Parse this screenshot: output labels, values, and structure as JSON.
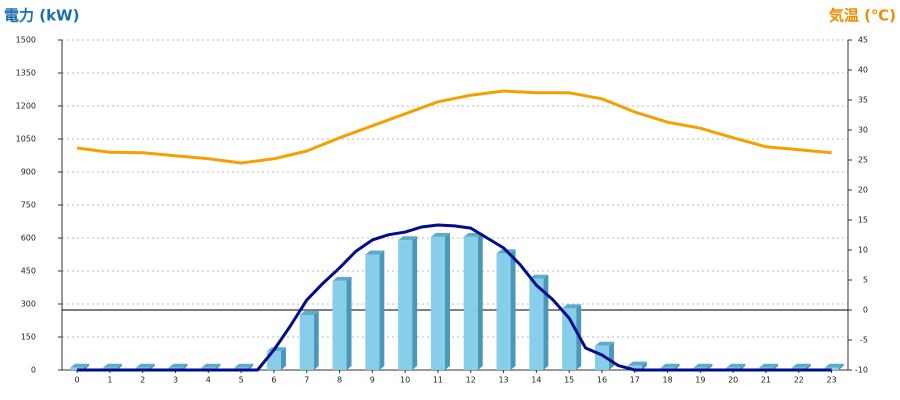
{
  "chart_data": {
    "type": "bar",
    "y_title": "電力 (kW)",
    "y2_title": "気温 (℃)",
    "xlim": [
      -0.46,
      23.5
    ],
    "xticks": [
      0,
      1,
      2,
      3,
      4,
      5,
      6,
      7,
      8,
      9,
      10,
      11,
      12,
      13,
      14,
      15,
      16,
      17,
      18,
      19,
      20,
      21,
      22,
      23
    ],
    "ylim": [
      0,
      1500
    ],
    "yticks": [
      0,
      150,
      300,
      450,
      600,
      750,
      900,
      1050,
      1200,
      1350,
      1500
    ],
    "y2lim": [
      -10,
      45
    ],
    "y2ticks": [
      -10,
      -5,
      0,
      5,
      10,
      15,
      20,
      25,
      30,
      35,
      40,
      45
    ],
    "grid": true,
    "reference_line": {
      "axis": "y2",
      "value": 0,
      "color": "#000000"
    },
    "series": [
      {
        "type": "bar",
        "color": "#87ceeb",
        "x": [
          0,
          1,
          2,
          3,
          4,
          5,
          6,
          7,
          8,
          9,
          10,
          11,
          12,
          13,
          14,
          15,
          16,
          17,
          18,
          19,
          20,
          21,
          22,
          23
        ],
        "values": [
          10,
          10,
          10,
          10,
          10,
          10,
          85,
          250,
          405,
          525,
          590,
          605,
          605,
          530,
          415,
          280,
          110,
          20,
          10,
          10,
          10,
          10,
          10,
          10
        ]
      },
      {
        "type": "line",
        "color": "#000c8c",
        "x": [
          0,
          1,
          2,
          3,
          4,
          5,
          5.5,
          6,
          6.5,
          7,
          7.5,
          8,
          8.5,
          9,
          9.5,
          10,
          10.5,
          11,
          11.5,
          12,
          12.5,
          13,
          13.5,
          14,
          14.5,
          15,
          15.5,
          16,
          16.5,
          17,
          18,
          19,
          20,
          21,
          22,
          23
        ],
        "values": [
          0,
          0,
          0,
          0,
          0,
          0,
          0,
          91,
          200,
          318,
          395,
          464,
          540,
          591,
          615,
          627,
          650,
          659,
          655,
          645,
          600,
          555,
          480,
          386,
          320,
          236,
          100,
          68,
          20,
          0,
          0,
          0,
          0,
          0,
          0,
          0
        ]
      },
      {
        "type": "line",
        "axis": "y2",
        "color": "#f5a000",
        "x": [
          0,
          1,
          2,
          3,
          4,
          5,
          6,
          7,
          8,
          9,
          10,
          11,
          12,
          13,
          14,
          15,
          16,
          17,
          18,
          19,
          20,
          21,
          22,
          23
        ],
        "values": [
          27,
          26.3,
          26.2,
          25.7,
          25.2,
          24.5,
          25.2,
          26.5,
          28.7,
          30.7,
          32.7,
          34.7,
          35.8,
          36.5,
          36.2,
          36.2,
          35.2,
          33,
          31.3,
          30.3,
          28.7,
          27.2,
          26.7,
          26.2
        ]
      }
    ]
  }
}
